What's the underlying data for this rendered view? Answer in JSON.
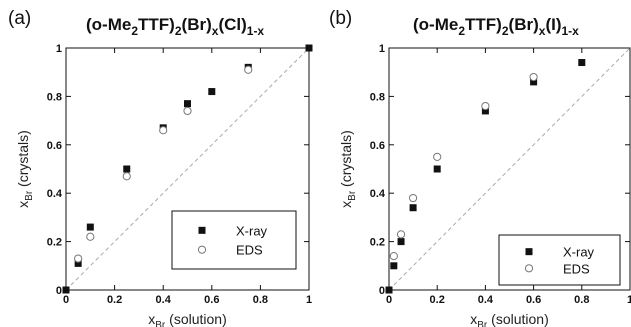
{
  "chart_data": [
    {
      "type": "scatter",
      "panel": "(a)",
      "title_main": "(o-Me",
      "title_sub1": "2",
      "title_mid": "TTF)",
      "title_sub2": "2",
      "title_rest": "(Br)",
      "title_sub3": "x",
      "title_end": "(Cl)",
      "title_sub4": "1-x",
      "xlabel_main": "x",
      "xlabel_sub": "Br",
      "xlabel_rest": " (solution)",
      "ylabel_main": "x",
      "ylabel_sub": "Br",
      "ylabel_rest": " (crystals)",
      "xlim": [
        0,
        1
      ],
      "ylim": [
        0,
        1
      ],
      "xticks": [
        "0",
        "0.2",
        "0.4",
        "0.6",
        "0.8",
        "1"
      ],
      "yticks": [
        "0",
        "0.2",
        "0.4",
        "0.6",
        "0.8",
        "1"
      ],
      "diagonal": true,
      "legend_position": "bottom-right",
      "series": [
        {
          "name": "X-ray",
          "marker": "filled-square",
          "points": [
            [
              0,
              0
            ],
            [
              0.05,
              0.11
            ],
            [
              0.1,
              0.26
            ],
            [
              0.25,
              0.5
            ],
            [
              0.4,
              0.67
            ],
            [
              0.5,
              0.77
            ],
            [
              0.6,
              0.82
            ],
            [
              0.75,
              0.92
            ],
            [
              1,
              1
            ]
          ]
        },
        {
          "name": "EDS",
          "marker": "open-circle",
          "points": [
            [
              0.05,
              0.13
            ],
            [
              0.1,
              0.22
            ],
            [
              0.25,
              0.47
            ],
            [
              0.4,
              0.66
            ],
            [
              0.5,
              0.74
            ],
            [
              0.75,
              0.91
            ]
          ]
        }
      ]
    },
    {
      "type": "scatter",
      "panel": "(b)",
      "title_main": "(o-Me",
      "title_sub1": "2",
      "title_mid": "TTF)",
      "title_sub2": "2",
      "title_rest": "(Br)",
      "title_sub3": "x",
      "title_end": "(I)",
      "title_sub4": "1-x",
      "xlabel_main": "x",
      "xlabel_sub": "Br",
      "xlabel_rest": " (solution)",
      "ylabel_main": "x",
      "ylabel_sub": "Br",
      "ylabel_rest": " (crystals)",
      "xlim": [
        0,
        1
      ],
      "ylim": [
        0,
        1
      ],
      "xticks": [
        "0",
        "0.2",
        "0.4",
        "0.6",
        "0.8",
        "1"
      ],
      "yticks": [
        "0",
        "0.2",
        "0.4",
        "0.6",
        "0.8",
        "1"
      ],
      "diagonal": true,
      "legend_position": "bottom-right",
      "series": [
        {
          "name": "X-ray",
          "marker": "filled-square",
          "points": [
            [
              0,
              0
            ],
            [
              0.02,
              0.1
            ],
            [
              0.05,
              0.2
            ],
            [
              0.1,
              0.34
            ],
            [
              0.2,
              0.5
            ],
            [
              0.4,
              0.74
            ],
            [
              0.6,
              0.86
            ],
            [
              0.8,
              0.94
            ]
          ]
        },
        {
          "name": "EDS",
          "marker": "open-circle",
          "points": [
            [
              0.02,
              0.14
            ],
            [
              0.05,
              0.23
            ],
            [
              0.1,
              0.38
            ],
            [
              0.2,
              0.55
            ],
            [
              0.4,
              0.76
            ],
            [
              0.6,
              0.88
            ]
          ]
        }
      ]
    }
  ]
}
